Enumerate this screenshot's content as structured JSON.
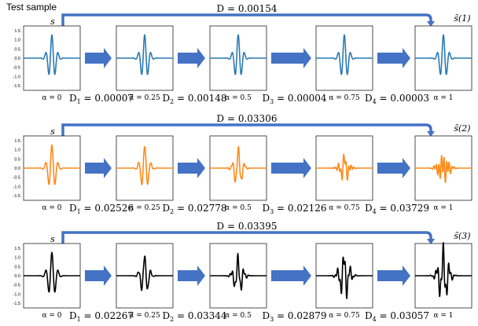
{
  "header": {
    "test_label": "Test sample"
  },
  "colors": {
    "arrow": "#4472c4",
    "frame": "#222222"
  },
  "axis_ticks": [
    "1.5",
    "1.0",
    "0.5",
    "0.0",
    "-0.5",
    "-1.0",
    "-1.5"
  ],
  "rows": [
    {
      "color": "#2a7ab3",
      "left_label": "s",
      "right_label": "s̃(1)",
      "d_total": "D = 0.00154",
      "alphas": [
        "α = 0",
        "α = 0.25",
        "α = 0.5",
        "α = 0.75",
        "α = 1"
      ],
      "d_steps": [
        "D1 = 0.00007",
        "D2 = 0.00148",
        "D3 = 0.00004",
        "D4 = 0.00003"
      ],
      "distortion": [
        0,
        0,
        0,
        0,
        0
      ]
    },
    {
      "color": "#ff8a1a",
      "left_label": "s",
      "right_label": "s̃(2)",
      "d_total": "D = 0.03306",
      "alphas": [
        "α = 0",
        "α = 0.25",
        "α = 0.5",
        "α = 0.75",
        "α = 1"
      ],
      "d_steps": [
        "D1 = 0.02526",
        "D2 = 0.02778",
        "D3 = 0.02126",
        "D4 = 0.03729"
      ],
      "distortion": [
        0,
        0.1,
        0.3,
        0.6,
        1.0
      ]
    },
    {
      "color": "#000000",
      "left_label": "s",
      "right_label": "s̃(3)",
      "d_total": "D = 0.03395",
      "alphas": [
        "α = 0",
        "α = 0.25",
        "α = 0.5",
        "α = 0.75",
        "α = 1"
      ],
      "d_steps": [
        "D1 = 0.02267",
        "D2 = 0.03344",
        "D3 = 0.02879",
        "D4 = 0.03057"
      ],
      "distortion": [
        0,
        0.2,
        0.5,
        0.8,
        1.0
      ]
    }
  ]
}
